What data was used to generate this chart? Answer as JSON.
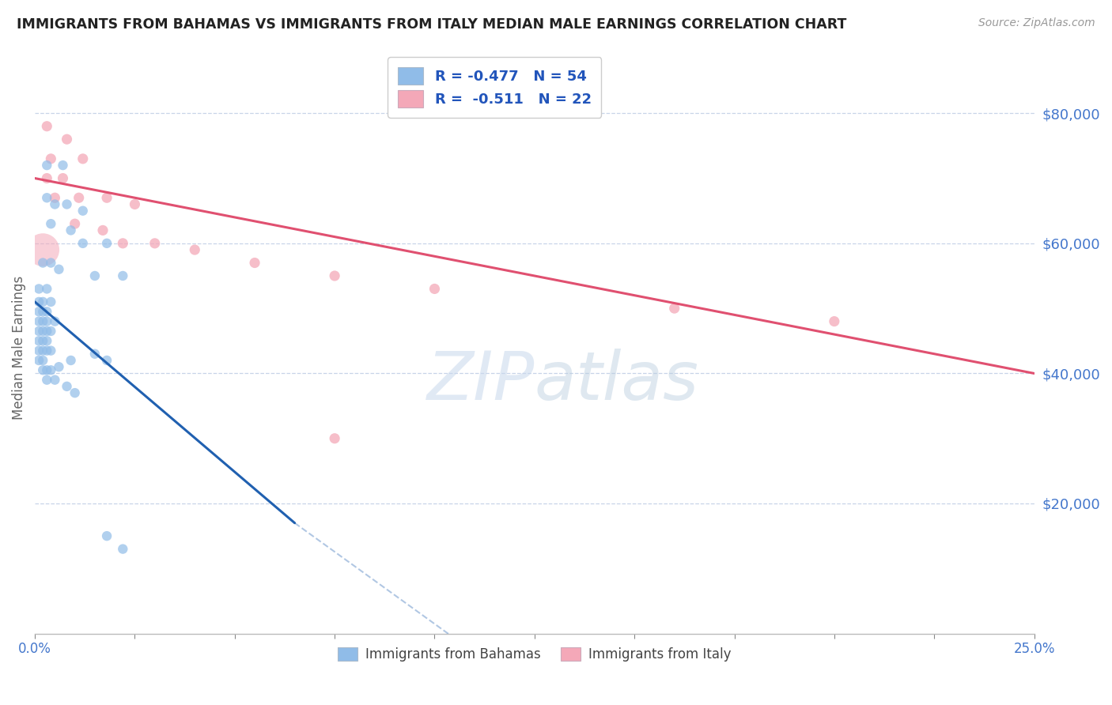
{
  "title": "IMMIGRANTS FROM BAHAMAS VS IMMIGRANTS FROM ITALY MEDIAN MALE EARNINGS CORRELATION CHART",
  "source": "Source: ZipAtlas.com",
  "ylabel": "Median Male Earnings",
  "y_tick_labels": [
    "$20,000",
    "$40,000",
    "$60,000",
    "$80,000"
  ],
  "y_tick_values": [
    20000,
    40000,
    60000,
    80000
  ],
  "legend_entry1": "R = -0.477   N = 54",
  "legend_entry2": "R =  -0.511   N = 22",
  "legend_label1": "Immigrants from Bahamas",
  "legend_label2": "Immigrants from Italy",
  "bahamas_color": "#90bce8",
  "italy_color": "#f4a8b8",
  "bahamas_line_color": "#2060b0",
  "italy_line_color": "#e05070",
  "xmin": 0.0,
  "xmax": 0.25,
  "ymin": 0,
  "ymax": 88000,
  "background_color": "#ffffff",
  "grid_color": "#c8d4e8",
  "title_color": "#222222",
  "axis_label_color": "#4477cc",
  "legend_text_color": "#2255bb",
  "bahamas_scatter": [
    [
      0.003,
      72000
    ],
    [
      0.007,
      72000
    ],
    [
      0.003,
      67000
    ],
    [
      0.005,
      66000
    ],
    [
      0.008,
      66000
    ],
    [
      0.012,
      65000
    ],
    [
      0.004,
      63000
    ],
    [
      0.009,
      62000
    ],
    [
      0.012,
      60000
    ],
    [
      0.018,
      60000
    ],
    [
      0.002,
      57000
    ],
    [
      0.004,
      57000
    ],
    [
      0.006,
      56000
    ],
    [
      0.015,
      55000
    ],
    [
      0.022,
      55000
    ],
    [
      0.001,
      53000
    ],
    [
      0.003,
      53000
    ],
    [
      0.001,
      51000
    ],
    [
      0.002,
      51000
    ],
    [
      0.004,
      51000
    ],
    [
      0.001,
      49500
    ],
    [
      0.002,
      49500
    ],
    [
      0.003,
      49500
    ],
    [
      0.001,
      48000
    ],
    [
      0.002,
      48000
    ],
    [
      0.003,
      48000
    ],
    [
      0.005,
      48000
    ],
    [
      0.001,
      46500
    ],
    [
      0.002,
      46500
    ],
    [
      0.003,
      46500
    ],
    [
      0.004,
      46500
    ],
    [
      0.001,
      45000
    ],
    [
      0.002,
      45000
    ],
    [
      0.003,
      45000
    ],
    [
      0.001,
      43500
    ],
    [
      0.002,
      43500
    ],
    [
      0.003,
      43500
    ],
    [
      0.004,
      43500
    ],
    [
      0.001,
      42000
    ],
    [
      0.002,
      42000
    ],
    [
      0.002,
      40500
    ],
    [
      0.003,
      40500
    ],
    [
      0.004,
      40500
    ],
    [
      0.003,
      39000
    ],
    [
      0.005,
      39000
    ],
    [
      0.006,
      41000
    ],
    [
      0.009,
      42000
    ],
    [
      0.015,
      43000
    ],
    [
      0.018,
      42000
    ],
    [
      0.008,
      38000
    ],
    [
      0.01,
      37000
    ],
    [
      0.018,
      15000
    ],
    [
      0.022,
      13000
    ]
  ],
  "bahamas_large_bubble": [
    0.002,
    59000
  ],
  "italy_scatter": [
    [
      0.003,
      78000
    ],
    [
      0.008,
      76000
    ],
    [
      0.004,
      73000
    ],
    [
      0.012,
      73000
    ],
    [
      0.003,
      70000
    ],
    [
      0.007,
      70000
    ],
    [
      0.005,
      67000
    ],
    [
      0.011,
      67000
    ],
    [
      0.018,
      67000
    ],
    [
      0.025,
      66000
    ],
    [
      0.01,
      63000
    ],
    [
      0.017,
      62000
    ],
    [
      0.022,
      60000
    ],
    [
      0.03,
      60000
    ],
    [
      0.04,
      59000
    ],
    [
      0.055,
      57000
    ],
    [
      0.075,
      55000
    ],
    [
      0.1,
      53000
    ],
    [
      0.16,
      50000
    ],
    [
      0.2,
      48000
    ],
    [
      0.075,
      30000
    ]
  ],
  "italy_large_bubble": [
    0.002,
    59000
  ],
  "bahamas_trendline": [
    [
      0.0,
      51000
    ],
    [
      0.065,
      17000
    ]
  ],
  "bahamas_trendline_dashed": [
    [
      0.065,
      17000
    ],
    [
      0.25,
      -65000
    ]
  ],
  "italy_trendline": [
    [
      0.0,
      70000
    ],
    [
      0.25,
      40000
    ]
  ]
}
